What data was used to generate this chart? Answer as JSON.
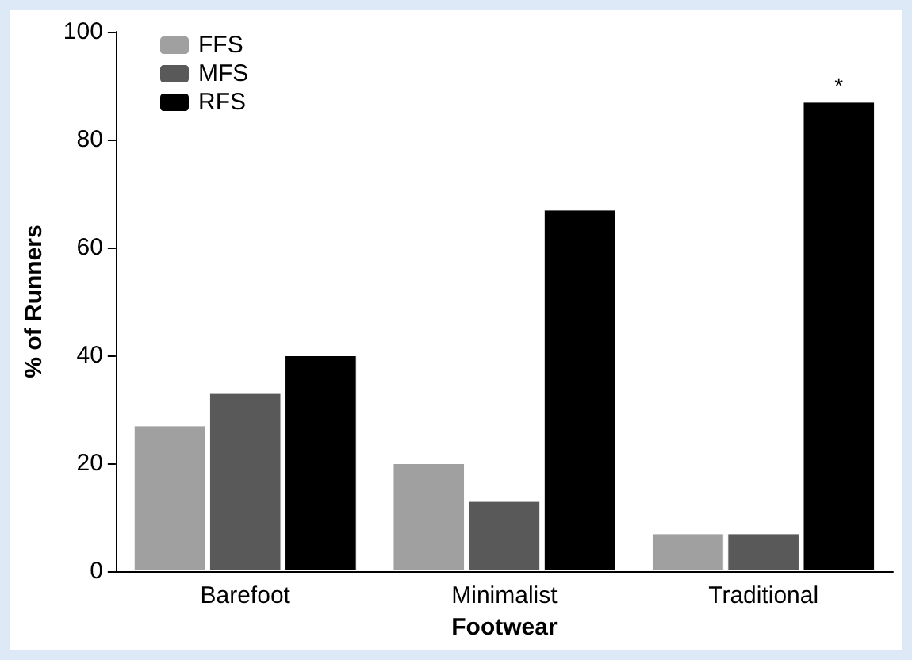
{
  "chart_data": {
    "type": "bar",
    "xlabel": "Footwear",
    "ylabel": "% of Runners",
    "categories": [
      "Barefoot",
      "Minimalist",
      "Traditional"
    ],
    "series": [
      {
        "name": "FFS",
        "color": "#a0a0a0",
        "values": [
          27,
          20,
          7
        ]
      },
      {
        "name": "MFS",
        "color": "#595959",
        "values": [
          33,
          13,
          7
        ]
      },
      {
        "name": "RFS",
        "color": "#000000",
        "values": [
          40,
          67,
          87
        ]
      }
    ],
    "ylim": [
      0,
      100
    ],
    "yticks": [
      0,
      20,
      40,
      60,
      80,
      100
    ],
    "grid": false,
    "legend": "top left",
    "annotations": [
      "*"
    ]
  }
}
